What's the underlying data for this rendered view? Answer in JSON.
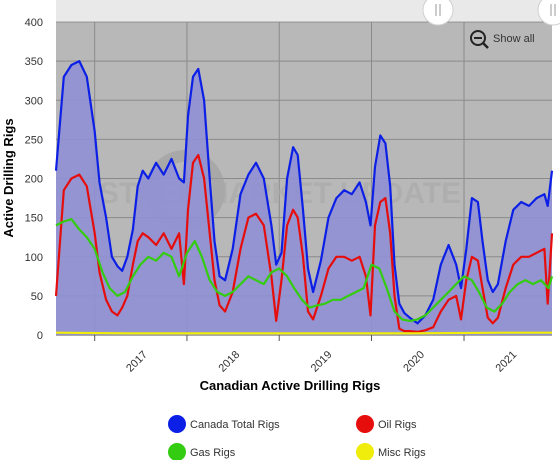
{
  "chart_data": {
    "type": "area",
    "ylabel": "Active Drilling Rigs",
    "xlabel": "Canadian Active Drilling Rigs",
    "ylim": [
      0,
      400
    ],
    "y_ticks": [
      0,
      50,
      100,
      150,
      200,
      250,
      300,
      350,
      400
    ],
    "x_range": [
      "2016-08-01",
      "2021-12-15"
    ],
    "x_ticks": [
      "2017",
      "2018",
      "2019",
      "2020",
      "2021"
    ],
    "grid": true,
    "legend_position": "bottom",
    "watermark": "STEEL MARKET UPDATE",
    "show_all_label": "Show all",
    "series": [
      {
        "name": "Canada Total Rigs",
        "color": "#0c1fe6",
        "x": [
          "2016-08-01",
          "2016-09-01",
          "2016-10-01",
          "2016-11-01",
          "2016-12-01",
          "2017-01-01",
          "2017-01-20",
          "2017-02-15",
          "2017-03-10",
          "2017-04-01",
          "2017-04-20",
          "2017-05-10",
          "2017-06-01",
          "2017-06-20",
          "2017-07-10",
          "2017-08-01",
          "2017-09-01",
          "2017-10-01",
          "2017-11-01",
          "2017-12-01",
          "2017-12-20",
          "2018-01-05",
          "2018-01-25",
          "2018-02-15",
          "2018-03-10",
          "2018-04-01",
          "2018-04-20",
          "2018-05-10",
          "2018-06-01",
          "2018-07-01",
          "2018-08-01",
          "2018-09-01",
          "2018-10-01",
          "2018-11-01",
          "2018-12-01",
          "2018-12-20",
          "2019-01-10",
          "2019-02-01",
          "2019-02-25",
          "2019-03-15",
          "2019-04-05",
          "2019-04-25",
          "2019-05-15",
          "2019-06-15",
          "2019-07-15",
          "2019-08-15",
          "2019-09-15",
          "2019-10-15",
          "2019-11-15",
          "2019-12-10",
          "2019-12-28",
          "2020-01-15",
          "2020-02-05",
          "2020-02-25",
          "2020-03-15",
          "2020-04-01",
          "2020-04-20",
          "2020-05-10",
          "2020-06-01",
          "2020-07-01",
          "2020-08-01",
          "2020-09-01",
          "2020-10-01",
          "2020-11-01",
          "2020-12-01",
          "2020-12-20",
          "2021-01-10",
          "2021-02-01",
          "2021-02-25",
          "2021-03-15",
          "2021-04-05",
          "2021-04-25",
          "2021-05-15",
          "2021-06-15",
          "2021-07-15",
          "2021-08-15",
          "2021-09-15",
          "2021-10-15",
          "2021-11-15",
          "2021-11-28",
          "2021-12-15"
        ],
        "values": [
          210,
          330,
          345,
          350,
          330,
          260,
          195,
          150,
          100,
          88,
          82,
          100,
          135,
          190,
          210,
          200,
          220,
          205,
          225,
          200,
          195,
          280,
          330,
          340,
          300,
          200,
          120,
          75,
          70,
          110,
          180,
          205,
          220,
          200,
          140,
          90,
          105,
          200,
          240,
          230,
          160,
          85,
          55,
          95,
          150,
          175,
          185,
          180,
          195,
          170,
          140,
          215,
          255,
          245,
          190,
          90,
          40,
          28,
          22,
          15,
          25,
          45,
          90,
          115,
          90,
          60,
          110,
          175,
          170,
          120,
          70,
          55,
          65,
          120,
          160,
          170,
          165,
          175,
          180,
          165,
          210
        ]
      },
      {
        "name": "Oil Rigs",
        "color": "#e60d0d",
        "x": [
          "2016-08-01",
          "2016-09-01",
          "2016-10-01",
          "2016-11-01",
          "2016-12-01",
          "2017-01-01",
          "2017-01-20",
          "2017-02-15",
          "2017-03-10",
          "2017-04-01",
          "2017-04-20",
          "2017-05-10",
          "2017-06-01",
          "2017-06-20",
          "2017-07-10",
          "2017-08-01",
          "2017-09-01",
          "2017-10-01",
          "2017-11-01",
          "2017-12-01",
          "2017-12-20",
          "2018-01-05",
          "2018-01-25",
          "2018-02-15",
          "2018-03-10",
          "2018-04-01",
          "2018-04-20",
          "2018-05-10",
          "2018-06-01",
          "2018-07-01",
          "2018-08-01",
          "2018-09-01",
          "2018-10-01",
          "2018-11-01",
          "2018-12-01",
          "2018-12-20",
          "2019-01-10",
          "2019-02-01",
          "2019-02-25",
          "2019-03-15",
          "2019-04-05",
          "2019-04-25",
          "2019-05-15",
          "2019-06-15",
          "2019-07-15",
          "2019-08-15",
          "2019-09-15",
          "2019-10-15",
          "2019-11-15",
          "2019-12-10",
          "2019-12-28",
          "2020-01-15",
          "2020-02-05",
          "2020-02-25",
          "2020-03-15",
          "2020-04-01",
          "2020-04-20",
          "2020-05-10",
          "2020-06-01",
          "2020-07-01",
          "2020-08-01",
          "2020-09-01",
          "2020-10-01",
          "2020-11-01",
          "2020-12-01",
          "2020-12-20",
          "2021-01-10",
          "2021-02-01",
          "2021-02-25",
          "2021-03-15",
          "2021-04-05",
          "2021-04-25",
          "2021-05-15",
          "2021-06-15",
          "2021-07-15",
          "2021-08-15",
          "2021-09-15",
          "2021-10-15",
          "2021-11-15",
          "2021-11-28",
          "2021-12-15"
        ],
        "values": [
          50,
          185,
          200,
          205,
          190,
          130,
          80,
          45,
          30,
          25,
          35,
          50,
          90,
          120,
          130,
          125,
          115,
          130,
          110,
          130,
          65,
          160,
          220,
          230,
          200,
          130,
          70,
          38,
          30,
          55,
          110,
          150,
          155,
          140,
          75,
          18,
          70,
          140,
          160,
          150,
          100,
          30,
          20,
          50,
          85,
          100,
          100,
          95,
          100,
          75,
          25,
          140,
          170,
          175,
          130,
          50,
          8,
          5,
          5,
          4,
          6,
          10,
          30,
          45,
          50,
          20,
          70,
          100,
          95,
          60,
          22,
          15,
          22,
          60,
          90,
          100,
          100,
          105,
          110,
          40,
          130
        ]
      },
      {
        "name": "Gas Rigs",
        "color": "#33cc10",
        "x": [
          "2016-08-01",
          "2016-09-01",
          "2016-10-01",
          "2016-11-01",
          "2016-12-01",
          "2017-01-01",
          "2017-02-01",
          "2017-03-01",
          "2017-04-01",
          "2017-05-01",
          "2017-06-01",
          "2017-07-01",
          "2017-08-01",
          "2017-09-01",
          "2017-10-01",
          "2017-11-01",
          "2017-12-01",
          "2018-01-01",
          "2018-02-01",
          "2018-03-01",
          "2018-04-01",
          "2018-05-01",
          "2018-06-01",
          "2018-07-01",
          "2018-08-01",
          "2018-09-01",
          "2018-10-01",
          "2018-11-01",
          "2018-12-01",
          "2019-01-01",
          "2019-02-01",
          "2019-03-01",
          "2019-04-01",
          "2019-05-01",
          "2019-06-01",
          "2019-07-01",
          "2019-08-01",
          "2019-09-01",
          "2019-10-01",
          "2019-11-01",
          "2019-12-01",
          "2020-01-01",
          "2020-02-01",
          "2020-03-01",
          "2020-04-01",
          "2020-05-01",
          "2020-06-01",
          "2020-07-01",
          "2020-08-01",
          "2020-09-01",
          "2020-10-01",
          "2020-11-01",
          "2020-12-01",
          "2021-01-01",
          "2021-02-01",
          "2021-03-01",
          "2021-04-01",
          "2021-05-01",
          "2021-06-01",
          "2021-07-01",
          "2021-08-01",
          "2021-09-01",
          "2021-10-01",
          "2021-11-01",
          "2021-12-01",
          "2021-12-15"
        ],
        "values": [
          140,
          145,
          148,
          135,
          125,
          110,
          80,
          60,
          50,
          55,
          75,
          90,
          100,
          95,
          105,
          100,
          75,
          105,
          120,
          100,
          70,
          55,
          50,
          55,
          65,
          75,
          70,
          65,
          80,
          85,
          75,
          60,
          45,
          35,
          38,
          40,
          45,
          45,
          50,
          55,
          60,
          90,
          85,
          60,
          30,
          20,
          18,
          20,
          25,
          35,
          45,
          55,
          65,
          75,
          70,
          55,
          35,
          30,
          40,
          55,
          65,
          70,
          65,
          70,
          60,
          75
        ]
      },
      {
        "name": "Misc Rigs",
        "color": "#f0ec0c",
        "x": [
          "2016-08-01",
          "2017-06-01",
          "2018-06-01",
          "2019-06-01",
          "2020-06-01",
          "2021-06-01",
          "2021-12-15"
        ],
        "values": [
          3,
          2,
          2,
          2,
          2,
          3,
          3
        ]
      }
    ]
  }
}
